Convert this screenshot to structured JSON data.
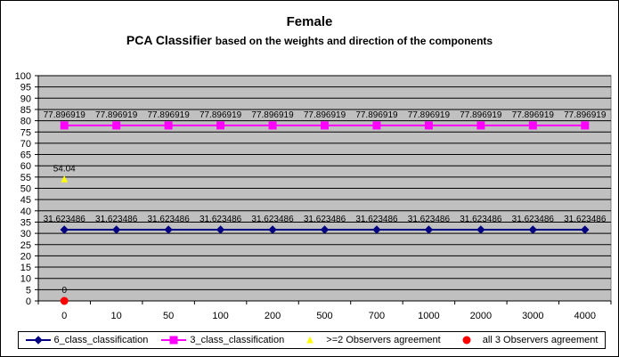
{
  "chart_data": {
    "type": "line",
    "title": "Female",
    "subtitle_main": "PCA Classifier",
    "subtitle_rest": "based on the weights and direction of the components",
    "xlabel": "",
    "ylabel": "",
    "categories": [
      "0",
      "10",
      "50",
      "100",
      "200",
      "500",
      "700",
      "1000",
      "2000",
      "3000",
      "4000"
    ],
    "ylim": [
      0,
      100
    ],
    "ytick_step": 5,
    "grid": true,
    "legend_position": "bottom",
    "series": [
      {
        "name": "6_class_classification",
        "color": "#000080",
        "marker": "diamond",
        "values": [
          31.623486,
          31.623486,
          31.623486,
          31.623486,
          31.623486,
          31.623486,
          31.623486,
          31.623486,
          31.623486,
          31.623486,
          31.623486
        ],
        "labels": [
          "31.623486",
          "31.623486",
          "31.623486",
          "31.623486",
          "31.623486",
          "31.623486",
          "31.623486",
          "31.623486",
          "31.623486",
          "31.623486",
          "31.623486"
        ]
      },
      {
        "name": "3_class_classification",
        "color": "#ff00ff",
        "marker": "square",
        "values": [
          77.896919,
          77.896919,
          77.896919,
          77.896919,
          77.896919,
          77.896919,
          77.896919,
          77.896919,
          77.896919,
          77.896919,
          77.896919
        ],
        "labels": [
          "77.896919",
          "77.896919",
          "77.896919",
          "77.896919",
          "77.896919",
          "77.896919",
          "77.896919",
          "77.896919",
          "77.896919",
          "77.896919",
          "77.896919"
        ]
      },
      {
        "name": ">=2 Observers agreement",
        "color": "#ffff00",
        "marker": "triangle",
        "values": [
          54.04,
          null,
          null,
          null,
          null,
          null,
          null,
          null,
          null,
          null,
          null
        ],
        "labels": [
          "54.04"
        ]
      },
      {
        "name": "all 3 Observers agreement",
        "color": "#ff0000",
        "marker": "circle",
        "values": [
          0,
          null,
          null,
          null,
          null,
          null,
          null,
          null,
          null,
          null,
          null
        ],
        "labels": [
          "0"
        ]
      }
    ],
    "colors": {
      "plot_background": "#c0c0c0",
      "gridline": "#000000"
    }
  }
}
